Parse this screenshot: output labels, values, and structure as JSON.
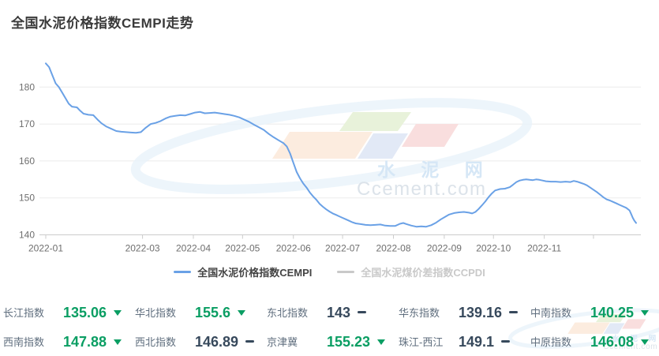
{
  "title": "全国水泥价格指数CEMPI走势",
  "colors": {
    "line_blue": "#6aa1e6",
    "down_green": "#0a9e63",
    "flat_navy": "#37495c",
    "label_gray": "#5f6e7e",
    "axis_text": "#6e6e6e",
    "legend_inactive": "#c9c9c9"
  },
  "watermark": {
    "cn": "水 泥 网",
    "en": "Ccement.com"
  },
  "chart_data": {
    "type": "line",
    "title": "全国水泥价格指数CEMPI走势",
    "xlabel": "",
    "ylabel": "",
    "ylim": [
      140,
      188
    ],
    "yticks": [
      140,
      150,
      160,
      170,
      180
    ],
    "grid": "horizontal",
    "legend_position": "bottom",
    "xticks": [
      {
        "date": "2022-01-01",
        "label": "2022-01"
      },
      {
        "date": "2022-03-01",
        "label": "2022-03"
      },
      {
        "date": "2022-04-01",
        "label": "2022-04"
      },
      {
        "date": "2022-05-01",
        "label": "2022-05"
      },
      {
        "date": "2022-06-01",
        "label": "2022-06"
      },
      {
        "date": "2022-07-01",
        "label": "2022-07"
      },
      {
        "date": "2022-08-01",
        "label": "2022-08"
      },
      {
        "date": "2022-09-01",
        "label": "2022-09"
      },
      {
        "date": "2022-10-01",
        "label": "2022-10"
      },
      {
        "date": "2022-11-01",
        "label": "2022-11"
      },
      {
        "date": "2022-12-01",
        "label": ""
      }
    ],
    "series": [
      {
        "name": "全国水泥价格指数CEMPI",
        "color": "#6aa1e6",
        "active": true,
        "points": [
          [
            "2022-01-01",
            186.4
          ],
          [
            "2022-01-03",
            185.4
          ],
          [
            "2022-01-05",
            183.2
          ],
          [
            "2022-01-07",
            181.0
          ],
          [
            "2022-01-09",
            180.0
          ],
          [
            "2022-01-11",
            178.5
          ],
          [
            "2022-01-13",
            177.0
          ],
          [
            "2022-01-15",
            175.5
          ],
          [
            "2022-01-17",
            174.7
          ],
          [
            "2022-01-20",
            174.5
          ],
          [
            "2022-01-22",
            173.6
          ],
          [
            "2022-01-24",
            172.8
          ],
          [
            "2022-01-27",
            172.5
          ],
          [
            "2022-01-30",
            172.4
          ],
          [
            "2022-02-02",
            171.0
          ],
          [
            "2022-02-04",
            170.2
          ],
          [
            "2022-02-07",
            169.3
          ],
          [
            "2022-02-10",
            168.7
          ],
          [
            "2022-02-13",
            168.1
          ],
          [
            "2022-02-16",
            167.9
          ],
          [
            "2022-02-19",
            167.8
          ],
          [
            "2022-02-22",
            167.7
          ],
          [
            "2022-02-25",
            167.6
          ],
          [
            "2022-02-28",
            167.8
          ],
          [
            "2022-03-03",
            169.0
          ],
          [
            "2022-03-06",
            170.0
          ],
          [
            "2022-03-09",
            170.3
          ],
          [
            "2022-03-12",
            170.8
          ],
          [
            "2022-03-15",
            171.5
          ],
          [
            "2022-03-18",
            172.0
          ],
          [
            "2022-03-21",
            172.2
          ],
          [
            "2022-03-24",
            172.4
          ],
          [
            "2022-03-27",
            172.3
          ],
          [
            "2022-03-30",
            172.7
          ],
          [
            "2022-04-02",
            173.1
          ],
          [
            "2022-04-05",
            173.3
          ],
          [
            "2022-04-08",
            172.9
          ],
          [
            "2022-04-11",
            173.0
          ],
          [
            "2022-04-14",
            173.1
          ],
          [
            "2022-04-17",
            172.9
          ],
          [
            "2022-04-20",
            172.7
          ],
          [
            "2022-04-23",
            172.5
          ],
          [
            "2022-04-26",
            172.2
          ],
          [
            "2022-04-29",
            171.8
          ],
          [
            "2022-05-02",
            171.2
          ],
          [
            "2022-05-05",
            170.6
          ],
          [
            "2022-05-08",
            169.8
          ],
          [
            "2022-05-11",
            169.1
          ],
          [
            "2022-05-14",
            168.4
          ],
          [
            "2022-05-17",
            167.3
          ],
          [
            "2022-05-20",
            166.4
          ],
          [
            "2022-05-23",
            165.6
          ],
          [
            "2022-05-26",
            164.8
          ],
          [
            "2022-05-28",
            163.9
          ],
          [
            "2022-05-30",
            162.0
          ],
          [
            "2022-06-01",
            159.5
          ],
          [
            "2022-06-03",
            157.0
          ],
          [
            "2022-06-05",
            155.3
          ],
          [
            "2022-06-07",
            153.9
          ],
          [
            "2022-06-09",
            152.8
          ],
          [
            "2022-06-11",
            151.5
          ],
          [
            "2022-06-13",
            150.4
          ],
          [
            "2022-06-15",
            149.5
          ],
          [
            "2022-06-17",
            148.4
          ],
          [
            "2022-06-19",
            147.6
          ],
          [
            "2022-06-21",
            146.9
          ],
          [
            "2022-06-23",
            146.3
          ],
          [
            "2022-06-25",
            145.8
          ],
          [
            "2022-06-27",
            145.4
          ],
          [
            "2022-06-29",
            145.0
          ],
          [
            "2022-07-01",
            144.6
          ],
          [
            "2022-07-03",
            144.2
          ],
          [
            "2022-07-05",
            143.8
          ],
          [
            "2022-07-07",
            143.4
          ],
          [
            "2022-07-09",
            143.1
          ],
          [
            "2022-07-12",
            142.9
          ],
          [
            "2022-07-15",
            142.7
          ],
          [
            "2022-07-18",
            142.6
          ],
          [
            "2022-07-21",
            142.7
          ],
          [
            "2022-07-24",
            142.8
          ],
          [
            "2022-07-27",
            142.5
          ],
          [
            "2022-07-30",
            142.4
          ],
          [
            "2022-08-02",
            142.4
          ],
          [
            "2022-08-05",
            143.0
          ],
          [
            "2022-08-07",
            143.2
          ],
          [
            "2022-08-09",
            142.9
          ],
          [
            "2022-08-12",
            142.5
          ],
          [
            "2022-08-15",
            142.2
          ],
          [
            "2022-08-18",
            142.3
          ],
          [
            "2022-08-21",
            142.2
          ],
          [
            "2022-08-24",
            142.6
          ],
          [
            "2022-08-27",
            143.3
          ],
          [
            "2022-08-30",
            144.2
          ],
          [
            "2022-09-02",
            145.0
          ],
          [
            "2022-09-04",
            145.5
          ],
          [
            "2022-09-07",
            145.9
          ],
          [
            "2022-09-10",
            146.1
          ],
          [
            "2022-09-13",
            146.2
          ],
          [
            "2022-09-16",
            146.0
          ],
          [
            "2022-09-18",
            145.8
          ],
          [
            "2022-09-20",
            146.2
          ],
          [
            "2022-09-22",
            147.0
          ],
          [
            "2022-09-24",
            148.0
          ],
          [
            "2022-09-26",
            149.0
          ],
          [
            "2022-09-28",
            150.2
          ],
          [
            "2022-09-30",
            151.2
          ],
          [
            "2022-10-02",
            152.0
          ],
          [
            "2022-10-05",
            152.4
          ],
          [
            "2022-10-08",
            152.5
          ],
          [
            "2022-10-11",
            152.9
          ],
          [
            "2022-10-13",
            153.6
          ],
          [
            "2022-10-15",
            154.3
          ],
          [
            "2022-10-17",
            154.7
          ],
          [
            "2022-10-19",
            154.9
          ],
          [
            "2022-10-21",
            155.0
          ],
          [
            "2022-10-23",
            154.9
          ],
          [
            "2022-10-25",
            154.8
          ],
          [
            "2022-10-27",
            155.0
          ],
          [
            "2022-10-29",
            154.9
          ],
          [
            "2022-10-31",
            154.7
          ],
          [
            "2022-11-02",
            154.5
          ],
          [
            "2022-11-05",
            154.4
          ],
          [
            "2022-11-08",
            154.4
          ],
          [
            "2022-11-11",
            154.3
          ],
          [
            "2022-11-14",
            154.4
          ],
          [
            "2022-11-17",
            154.3
          ],
          [
            "2022-11-19",
            154.6
          ],
          [
            "2022-11-21",
            154.4
          ],
          [
            "2022-11-23",
            154.1
          ],
          [
            "2022-11-25",
            153.8
          ],
          [
            "2022-11-27",
            153.4
          ],
          [
            "2022-11-29",
            152.8
          ],
          [
            "2022-12-01",
            152.2
          ],
          [
            "2022-12-03",
            151.6
          ],
          [
            "2022-12-05",
            150.9
          ],
          [
            "2022-12-07",
            150.2
          ],
          [
            "2022-12-09",
            149.6
          ],
          [
            "2022-12-11",
            149.3
          ],
          [
            "2022-12-13",
            148.9
          ],
          [
            "2022-12-15",
            148.5
          ],
          [
            "2022-12-17",
            148.1
          ],
          [
            "2022-12-19",
            147.7
          ],
          [
            "2022-12-21",
            147.3
          ],
          [
            "2022-12-23",
            146.6
          ],
          [
            "2022-12-24",
            145.6
          ],
          [
            "2022-12-25",
            144.6
          ],
          [
            "2022-12-26",
            143.8
          ],
          [
            "2022-12-27",
            143.2
          ]
        ]
      },
      {
        "name": "全国水泥煤价差指数CCPDI",
        "color": "#c9c9c9",
        "active": false,
        "points": []
      }
    ]
  },
  "footer": {
    "rows": [
      [
        {
          "label": "长江指数",
          "value": "135.06",
          "trend": "down"
        },
        {
          "label": "华北指数",
          "value": "155.6",
          "trend": "down"
        },
        {
          "label": "东北指数",
          "value": "143",
          "trend": "flat"
        },
        {
          "label": "华东指数",
          "value": "139.16",
          "trend": "flat"
        },
        {
          "label": "中南指数",
          "value": "140.25",
          "trend": "down"
        }
      ],
      [
        {
          "label": "西南指数",
          "value": "147.88",
          "trend": "down"
        },
        {
          "label": "西北指数",
          "value": "146.89",
          "trend": "flat"
        },
        {
          "label": "京津冀",
          "value": "155.23",
          "trend": "down"
        },
        {
          "label": "珠江-西江",
          "value": "149.1",
          "trend": "flat"
        },
        {
          "label": "中原指数",
          "value": "146.08",
          "trend": "down"
        }
      ]
    ]
  }
}
